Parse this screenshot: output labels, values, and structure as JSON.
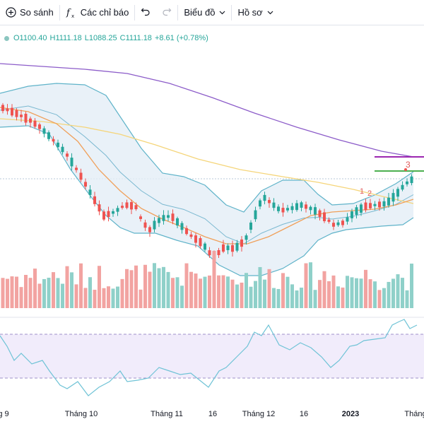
{
  "toolbar": {
    "compare": {
      "label": "So sánh",
      "icon": "plus-circle-icon"
    },
    "indicators": {
      "label": "Các chỉ báo",
      "icon": "fx-icon"
    },
    "undo_icon": "undo-icon",
    "redo_icon": "redo-icon",
    "chart_type": {
      "label": "Biểu đồ",
      "icon": "chevron-down-icon"
    },
    "profile": {
      "label": "Hồ sơ",
      "icon": "chevron-down-icon"
    }
  },
  "ohlc": {
    "open": "O1100.40",
    "high": "H1111.18",
    "low": "L1088.25",
    "close": "C1111.18",
    "change": "+8.61 (+0.78%)"
  },
  "xaxis": {
    "labels": [
      "g 9",
      "Tháng 10",
      "Tháng 11",
      "16",
      "Tháng 12",
      "16",
      "2023",
      "Tháng"
    ]
  },
  "markers": [
    "1",
    "2",
    "3"
  ],
  "colors": {
    "up": "#26a69a",
    "down": "#ef5350",
    "volume_up": "#8fd0c9",
    "volume_down": "#f2a3a1",
    "bollinger": "#5fb3c9",
    "ma_orange": "#f0a05a",
    "ma_yellow": "#f5d57a",
    "ma_purple": "#8c5cc9",
    "rsi": "#6fc3d6",
    "level_purple": "#9c27b0",
    "level_green": "#4caf50"
  }
}
